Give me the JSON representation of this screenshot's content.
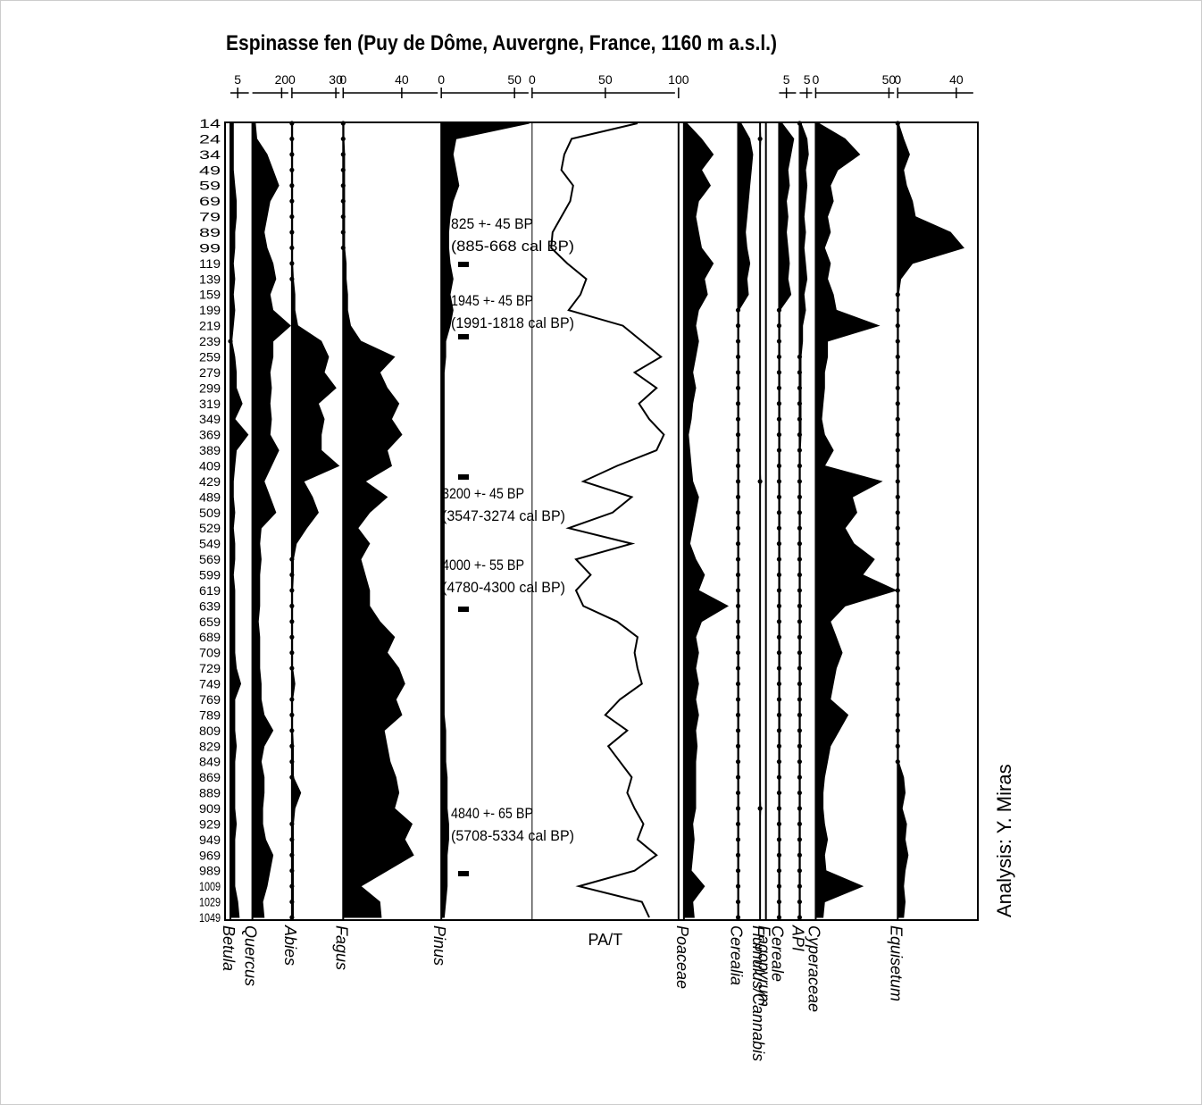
{
  "chart_data": {
    "type": "pollen",
    "title": "Espinasse fen (Puy de Dôme, Auvergne, France, 1160 m a.s.l.)",
    "credit": "Analysis: Y. Miras",
    "categories": [
      "14",
      "24",
      "34",
      "49",
      "59",
      "69",
      "79",
      "89",
      "99",
      "119",
      "139",
      "159",
      "199",
      "219",
      "239",
      "259",
      "279",
      "299",
      "319",
      "349",
      "369",
      "389",
      "409",
      "429",
      "489",
      "509",
      "529",
      "549",
      "569",
      "599",
      "619",
      "639",
      "659",
      "689",
      "709",
      "729",
      "749",
      "769",
      "789",
      "809",
      "829",
      "849",
      "869",
      "889",
      "909",
      "929",
      "949",
      "969",
      "989",
      "1009",
      "1029",
      "1049"
    ],
    "color": "#000000",
    "series": [
      {
        "name": "Betula",
        "type": "area",
        "xlim": [
          0,
          15
        ],
        "xticks": [
          5
        ],
        "values": [
          2,
          2,
          2,
          2,
          3,
          4,
          4,
          3,
          3,
          2,
          3,
          2,
          3,
          2,
          1,
          3,
          4,
          4,
          8,
          3,
          12,
          4,
          3,
          2,
          2,
          3,
          2,
          3,
          3,
          2,
          3,
          3,
          3,
          3,
          3,
          4,
          7,
          3,
          3,
          3,
          4,
          3,
          3,
          3,
          3,
          4,
          3,
          3,
          3,
          3,
          5,
          6
        ]
      },
      {
        "name": "Quercus",
        "type": "area",
        "xlim": [
          0,
          27
        ],
        "xticks": [
          20
        ],
        "values": [
          2,
          3,
          10,
          14,
          18,
          12,
          10,
          8,
          10,
          14,
          16,
          12,
          14,
          26,
          14,
          14,
          12,
          13,
          12,
          13,
          12,
          18,
          13,
          8,
          12,
          16,
          6,
          5,
          6,
          5,
          5,
          5,
          4,
          5,
          5,
          5,
          6,
          6,
          8,
          14,
          8,
          6,
          8,
          8,
          7,
          7,
          9,
          14,
          12,
          10,
          7,
          8
        ]
      },
      {
        "name": "Abies",
        "type": "area",
        "xlim": [
          0,
          35
        ],
        "xticks": [
          0,
          30
        ],
        "values": [
          0.5,
          0.5,
          0.5,
          0.5,
          0.5,
          0.5,
          0.5,
          0.5,
          0.5,
          0.5,
          1,
          2,
          2,
          4,
          20,
          25,
          22,
          30,
          18,
          22,
          20,
          20,
          32,
          8,
          14,
          18,
          10,
          3,
          1,
          1,
          0.5,
          0.5,
          0.5,
          0.5,
          0.5,
          0.5,
          2,
          0.5,
          0.5,
          0.5,
          1,
          1,
          1,
          6,
          2,
          1,
          1,
          1,
          1,
          1,
          1,
          1
        ]
      },
      {
        "name": "Fagus",
        "type": "area",
        "xlim": [
          0,
          67
        ],
        "xticks": [
          0,
          40
        ],
        "values": [
          0.5,
          0.5,
          1,
          1,
          1,
          1,
          1,
          1,
          1,
          2,
          2,
          3,
          3,
          5,
          12,
          35,
          25,
          30,
          38,
          33,
          40,
          30,
          33,
          15,
          30,
          18,
          10,
          18,
          12,
          15,
          18,
          18,
          25,
          35,
          30,
          38,
          42,
          36,
          40,
          28,
          30,
          32,
          36,
          38,
          35,
          47,
          42,
          48,
          30,
          12,
          25,
          26
        ]
      },
      {
        "name": "Pinus",
        "type": "area",
        "xlim": [
          0,
          62
        ],
        "xticks": [
          0,
          50
        ],
        "values": [
          60,
          10,
          8,
          10,
          12,
          8,
          6,
          5,
          5,
          6,
          8,
          6,
          8,
          6,
          3,
          3,
          2,
          2,
          2,
          2,
          2,
          2,
          2,
          2,
          2,
          2,
          2,
          2,
          2,
          2,
          2,
          2,
          2,
          2,
          2,
          2,
          2,
          2,
          2,
          3,
          3,
          3,
          4,
          4,
          4,
          5,
          5,
          4,
          4,
          4,
          3,
          2
        ]
      },
      {
        "name": "PA/T",
        "type": "line",
        "xlim": [
          0,
          100
        ],
        "xticks": [
          0,
          50,
          100
        ],
        "values": [
          72,
          27,
          22,
          20,
          28,
          26,
          20,
          14,
          13,
          24,
          37,
          33,
          25,
          62,
          75,
          88,
          70,
          85,
          73,
          80,
          90,
          85,
          58,
          35,
          68,
          55,
          25,
          68,
          30,
          40,
          30,
          35,
          58,
          72,
          70,
          72,
          75,
          60,
          50,
          65,
          52,
          60,
          68,
          65,
          70,
          76,
          72,
          85,
          70,
          32,
          75,
          80
        ]
      },
      {
        "name": "Poaceae",
        "type": "area",
        "xlim": [
          0,
          37
        ],
        "values": [
          2,
          12,
          20,
          12,
          18,
          10,
          8,
          10,
          12,
          20,
          14,
          16,
          10,
          8,
          10,
          8,
          6,
          8,
          6,
          5,
          3,
          4,
          5,
          6,
          10,
          8,
          6,
          4,
          8,
          14,
          10,
          30,
          12,
          8,
          10,
          8,
          10,
          8,
          10,
          8,
          9,
          8,
          8,
          8,
          8,
          6,
          7,
          6,
          5,
          14,
          6,
          7
        ]
      },
      {
        "name": "Cerealia",
        "type": "area",
        "xlim": [
          0,
          15
        ],
        "values": [
          2,
          8,
          10,
          9,
          8,
          7,
          6,
          5,
          6,
          8,
          6,
          7,
          0.5,
          0.5,
          0.5,
          0.5,
          0.5,
          0.5,
          0.5,
          0.5,
          0.5,
          0.5,
          0.5,
          0.5,
          0.5,
          0.5,
          0.5,
          0.5,
          0.5,
          0.5,
          0.5,
          0.5,
          0.5,
          0.5,
          0.5,
          0.5,
          0.5,
          0.5,
          0.5,
          0.5,
          0.5,
          0.5,
          0.5,
          0.5,
          0.5,
          0.5,
          0.5,
          0.5,
          0.5,
          0.5,
          0.5,
          0.5
        ]
      },
      {
        "name": "Humulus/Cannabis",
        "type": "area",
        "xlim": [
          0,
          4
        ],
        "values": [
          0,
          0.5,
          0,
          0,
          0,
          0,
          0,
          0,
          0,
          0,
          0,
          0,
          0,
          0,
          0,
          0,
          0,
          0,
          0,
          0,
          0,
          0,
          0,
          0.5,
          0,
          0,
          0,
          0,
          0,
          0,
          0,
          0,
          0,
          0,
          0,
          0,
          0,
          0,
          0,
          0,
          0,
          0,
          0,
          0,
          0.5,
          0,
          0,
          0,
          0,
          0,
          0,
          0
        ]
      },
      {
        "name": "Fagopyrum",
        "type": "area",
        "xlim": [
          0,
          9
        ],
        "values": [
          0,
          0,
          0,
          0,
          0,
          0,
          0,
          0,
          0,
          0,
          0,
          0,
          0,
          0,
          0,
          0,
          0,
          0,
          0,
          0,
          0,
          0,
          0,
          0,
          0,
          0,
          0,
          0,
          0,
          0,
          0,
          0,
          0,
          0,
          0,
          0,
          0,
          0,
          0,
          0,
          0,
          0,
          0,
          0,
          0,
          0,
          0,
          0,
          0,
          0,
          0,
          0
        ]
      },
      {
        "name": "Cereale",
        "type": "area",
        "xlim": [
          0,
          14
        ],
        "xticks": [
          5
        ],
        "values": [
          2,
          10,
          8,
          6,
          7,
          5,
          6,
          5,
          6,
          7,
          6,
          8,
          0.5,
          0.5,
          0.5,
          0.5,
          0.5,
          0.5,
          0.5,
          0.5,
          0.5,
          0.5,
          0.5,
          0.5,
          0.5,
          0.5,
          0.5,
          0.5,
          0.5,
          0.5,
          0.5,
          0.5,
          0.5,
          0.5,
          0.5,
          0.5,
          0.5,
          0.5,
          0.5,
          0.5,
          0.5,
          0.5,
          0.5,
          0.5,
          0.5,
          0.5,
          0.5,
          0.5,
          0.5,
          0.5,
          0.5,
          0.5
        ]
      },
      {
        "name": "API",
        "type": "area",
        "xlim": [
          0,
          11
        ],
        "xticks": [
          5
        ],
        "values": [
          1,
          5,
          6,
          4,
          5,
          4,
          3,
          4,
          3,
          4,
          5,
          3,
          4,
          2,
          2,
          1,
          1,
          1,
          1,
          1,
          1,
          0.5,
          0.5,
          0.5,
          0.5,
          0.5,
          0.5,
          0.5,
          0.5,
          0.5,
          0.5,
          0.5,
          0.5,
          0.5,
          0.5,
          0.5,
          0.5,
          0.5,
          0.5,
          0.5,
          0.5,
          0.5,
          0.5,
          0.5,
          0.5,
          0.5,
          0.5,
          0.5,
          0.5,
          0.5,
          0.5,
          0.5
        ]
      },
      {
        "name": "Cyperaceae",
        "type": "area",
        "xlim": [
          0,
          56
        ],
        "xticks": [
          0,
          50
        ],
        "values": [
          2,
          20,
          30,
          15,
          10,
          12,
          8,
          10,
          6,
          10,
          8,
          12,
          14,
          43,
          8,
          8,
          6,
          6,
          5,
          4,
          6,
          12,
          6,
          45,
          25,
          28,
          20,
          26,
          40,
          32,
          55,
          20,
          10,
          14,
          18,
          14,
          12,
          10,
          22,
          16,
          10,
          8,
          6,
          5,
          5,
          6,
          8,
          6,
          7,
          32,
          6,
          5
        ]
      },
      {
        "name": "Equisetum",
        "type": "area",
        "xlim": [
          0,
          54
        ],
        "xticks": [
          0,
          40
        ],
        "values": [
          0.5,
          4,
          8,
          4,
          6,
          10,
          12,
          36,
          45,
          10,
          2,
          0.5,
          0.5,
          0.5,
          0.5,
          0.5,
          0.5,
          0.5,
          0.5,
          0.5,
          0.5,
          0.5,
          0.5,
          0.5,
          0.5,
          0.5,
          0.5,
          0.5,
          0.5,
          0.5,
          0.5,
          0.5,
          0.5,
          0.5,
          0.5,
          0.5,
          0.5,
          0.5,
          0.5,
          0.5,
          0.5,
          0.5,
          4,
          5,
          3,
          6,
          5,
          7,
          5,
          4,
          5,
          4
        ]
      }
    ],
    "annotations": [
      [
        "825 +- 45 BP",
        "(885-668 cal BP)"
      ],
      [
        "1945 +- 45 BP",
        "(1991-1818 cal BP)"
      ],
      [
        "3200 +- 45 BP",
        "(3547-3274 cal BP)"
      ],
      [
        "4000 +- 55 BP",
        "(4780-4300 cal BP)"
      ],
      [
        "4840 +- 65 BP",
        "(5708-5334 cal BP)"
      ]
    ]
  }
}
